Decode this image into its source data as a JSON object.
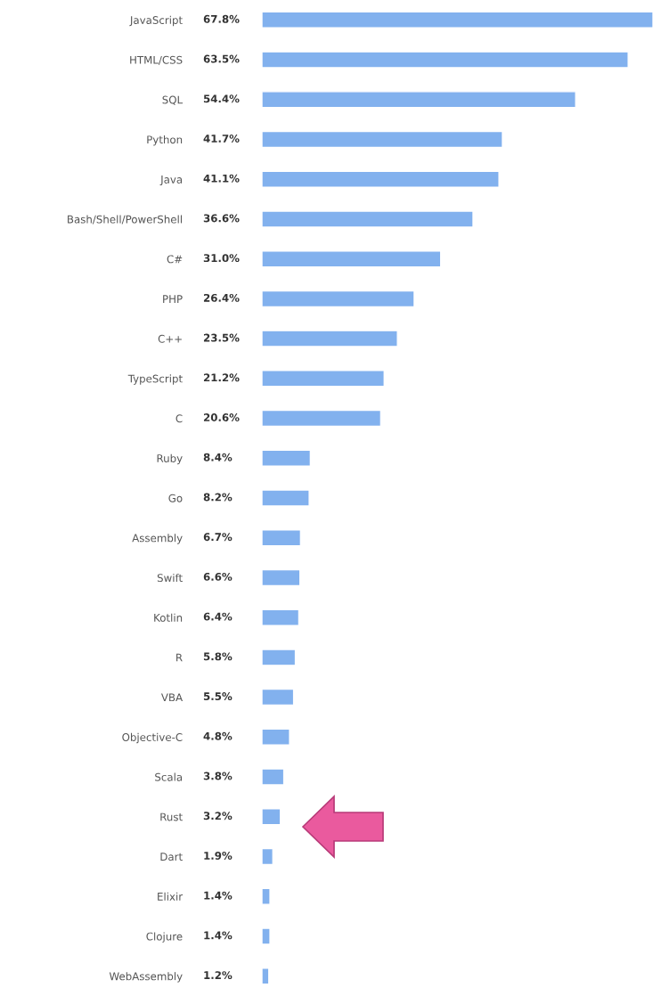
{
  "chart_data": {
    "type": "bar",
    "orientation": "horizontal",
    "categories": [
      "JavaScript",
      "HTML/CSS",
      "SQL",
      "Python",
      "Java",
      "Bash/Shell/PowerShell",
      "C#",
      "PHP",
      "C++",
      "TypeScript",
      "C",
      "Ruby",
      "Go",
      "Assembly",
      "Swift",
      "Kotlin",
      "R",
      "VBA",
      "Objective-C",
      "Scala",
      "Rust",
      "Dart",
      "Elixir",
      "Clojure",
      "WebAssembly"
    ],
    "values": [
      67.8,
      63.5,
      54.4,
      41.7,
      41.1,
      36.6,
      31.0,
      26.4,
      23.5,
      21.2,
      20.6,
      8.4,
      8.2,
      6.7,
      6.6,
      6.4,
      5.8,
      5.5,
      4.8,
      3.8,
      3.2,
      1.9,
      1.4,
      1.4,
      1.2
    ],
    "value_labels": [
      "67.8%",
      "63.5%",
      "54.4%",
      "41.7%",
      "41.1%",
      "36.6%",
      "31.0%",
      "26.4%",
      "23.5%",
      "21.2%",
      "20.6%",
      "8.4%",
      "8.2%",
      "6.7%",
      "6.6%",
      "6.4%",
      "5.8%",
      "5.5%",
      "4.8%",
      "3.8%",
      "3.2%",
      "1.9%",
      "1.4%",
      "1.4%",
      "1.2%"
    ],
    "color": "#82b1ee",
    "grid": false,
    "legend": false,
    "tick_labels": "y"
  }
}
